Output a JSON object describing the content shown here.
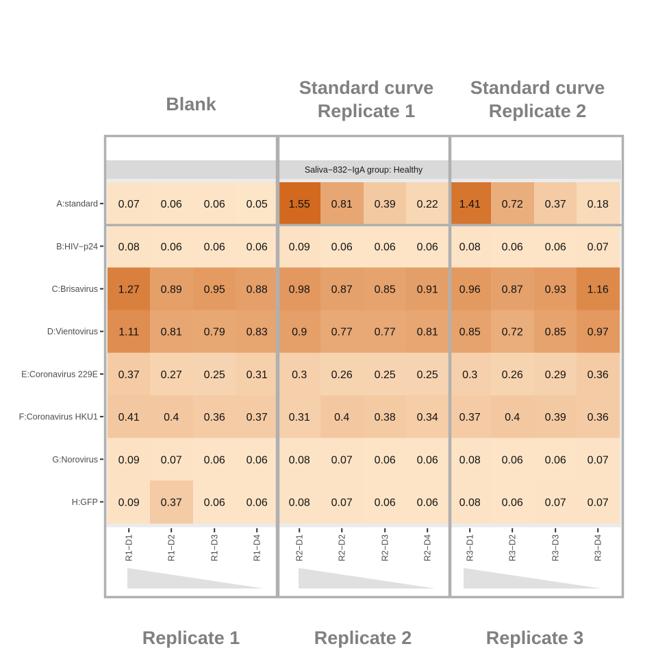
{
  "chart_data": {
    "type": "heatmap",
    "strip_label": "Saliva−832−IgA group: Healthy",
    "rows": [
      "A:standard",
      "B:HIV−p24",
      "C:Brisavirus",
      "D:Vientovirus",
      "E:Coronavirus 229E",
      "F:Coronavirus HKU1",
      "G:Norovirus",
      "H:GFP"
    ],
    "columns": [
      "R1−D1",
      "R1−D2",
      "R1−D3",
      "R1−D4",
      "R2−D1",
      "R2−D2",
      "R2−D3",
      "R2−D4",
      "R3−D1",
      "R3−D2",
      "R3−D3",
      "R3−D4"
    ],
    "values": [
      [
        0.07,
        0.06,
        0.06,
        0.05,
        1.55,
        0.81,
        0.39,
        0.22,
        1.41,
        0.72,
        0.37,
        0.18
      ],
      [
        0.08,
        0.06,
        0.06,
        0.06,
        0.09,
        0.06,
        0.06,
        0.06,
        0.08,
        0.06,
        0.06,
        0.07
      ],
      [
        1.27,
        0.89,
        0.95,
        0.88,
        0.98,
        0.87,
        0.85,
        0.91,
        0.96,
        0.87,
        0.93,
        1.16
      ],
      [
        1.11,
        0.81,
        0.79,
        0.83,
        0.9,
        0.77,
        0.77,
        0.81,
        0.85,
        0.72,
        0.85,
        0.97
      ],
      [
        0.37,
        0.27,
        0.25,
        0.31,
        0.3,
        0.26,
        0.25,
        0.25,
        0.3,
        0.26,
        0.29,
        0.36
      ],
      [
        0.41,
        0.4,
        0.36,
        0.37,
        0.31,
        0.4,
        0.38,
        0.34,
        0.37,
        0.4,
        0.39,
        0.36
      ],
      [
        0.09,
        0.07,
        0.06,
        0.06,
        0.08,
        0.07,
        0.06,
        0.06,
        0.08,
        0.06,
        0.06,
        0.07
      ],
      [
        0.09,
        0.37,
        0.06,
        0.06,
        0.08,
        0.07,
        0.06,
        0.06,
        0.08,
        0.06,
        0.07,
        0.07
      ]
    ],
    "top_annotations": [
      [
        "Blank"
      ],
      [
        "Standard curve",
        "Replicate 1"
      ],
      [
        "Standard curve",
        "Replicate 2"
      ]
    ],
    "bottom_annotations": [
      "Replicate 1",
      "Replicate 2",
      "Replicate 3"
    ],
    "color_scale": {
      "low": "#fde5c8",
      "high": "#d2691e",
      "min": 0.05,
      "max": 1.55
    },
    "colors": {
      "panel_bg": "#ebebeb",
      "strip_bg": "#d9d9d9",
      "box_stroke": "#b0b0b0",
      "annotation_text": "#808080",
      "wedge": "#e0e0e0"
    }
  }
}
